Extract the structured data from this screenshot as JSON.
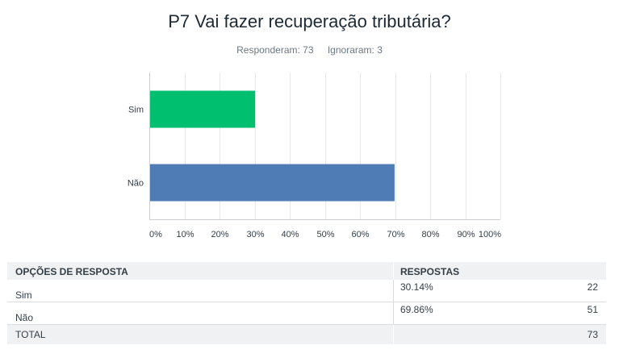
{
  "header": {
    "title": "P7 Vai fazer recuperação tributária?",
    "answered": "Responderam: 73",
    "skipped": "Ignoraram: 3"
  },
  "chart_data": {
    "type": "bar",
    "orientation": "horizontal",
    "categories": [
      "Sim",
      "Não"
    ],
    "values": [
      30.14,
      69.86
    ],
    "colors": [
      "#00bf6f",
      "#507cb6"
    ],
    "xlim": [
      0,
      100
    ],
    "xticks": [
      "0%",
      "10%",
      "20%",
      "30%",
      "40%",
      "50%",
      "60%",
      "70%",
      "80%",
      "90%",
      "100%"
    ],
    "grid": true
  },
  "table": {
    "headers": [
      "OPÇÕES DE RESPOSTA",
      "RESPOSTAS"
    ],
    "rows": [
      {
        "option": "Sim",
        "percent": "30.14%",
        "count": "22"
      },
      {
        "option": "Não",
        "percent": "69.86%",
        "count": "51"
      }
    ],
    "total_label": "TOTAL",
    "total_count": "73"
  }
}
